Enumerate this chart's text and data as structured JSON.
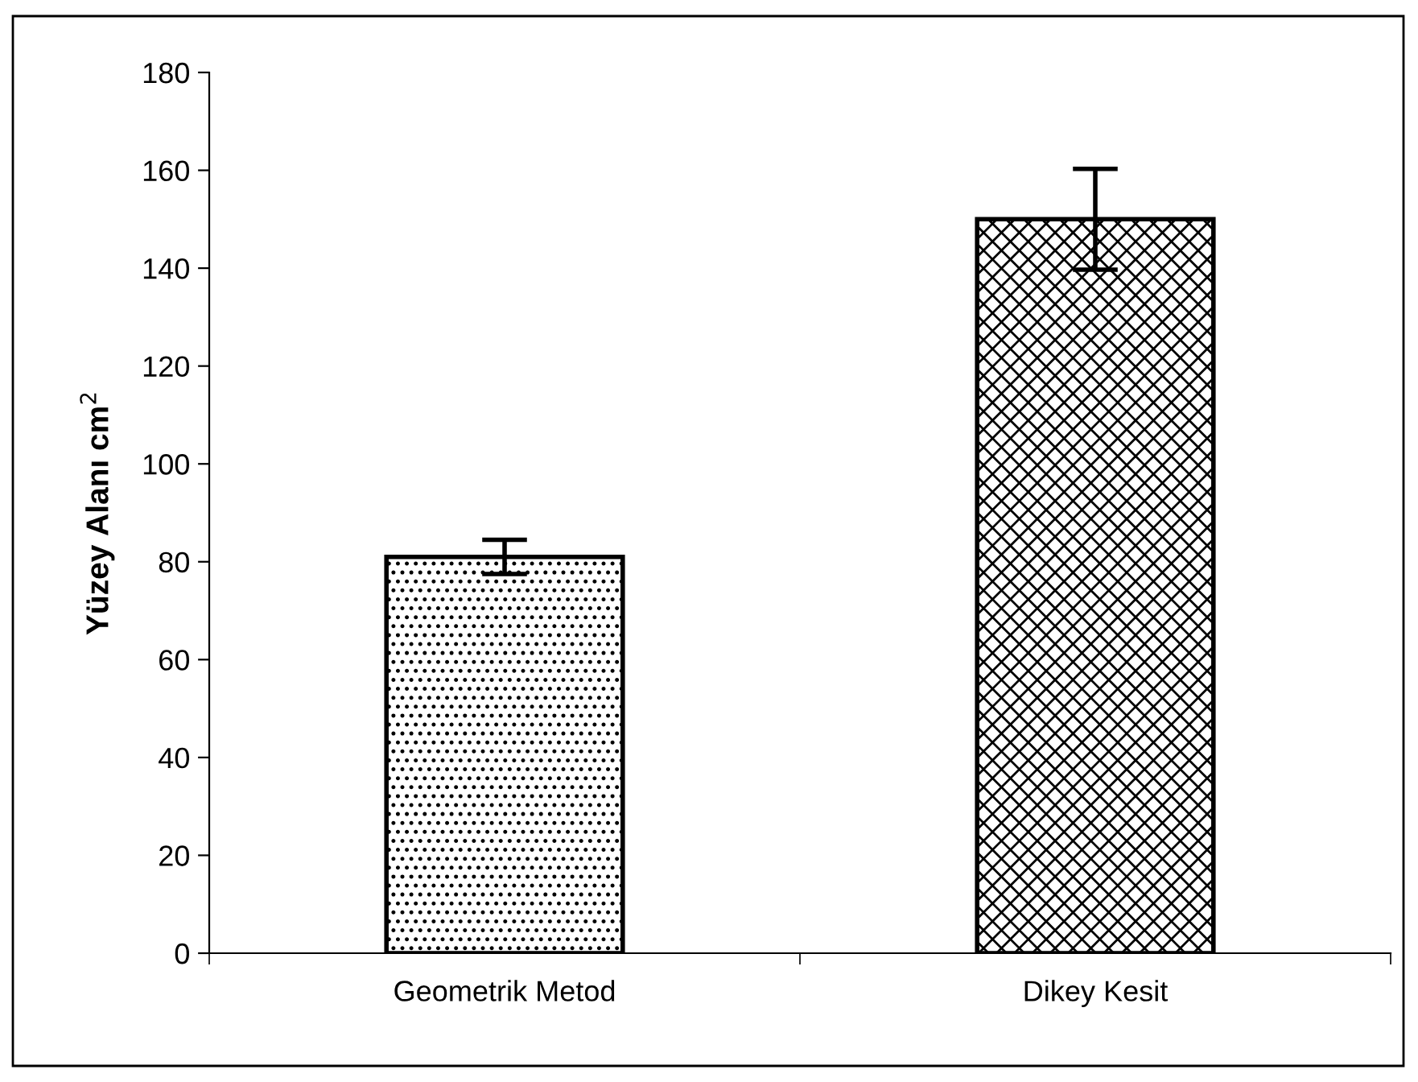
{
  "chart_data": {
    "type": "bar",
    "ylabel": "Yüzey Alanı cm$^{2}$",
    "categories": [
      "Geometrik Metod",
      "Dikey Kesit"
    ],
    "values": [
      81,
      150
    ],
    "errors": [
      3.5,
      10.3
    ],
    "ylim": [
      0,
      180
    ],
    "yticks": [
      0,
      20,
      40,
      60,
      80,
      100,
      120,
      140,
      160,
      180
    ],
    "grid": false,
    "legend": false
  }
}
